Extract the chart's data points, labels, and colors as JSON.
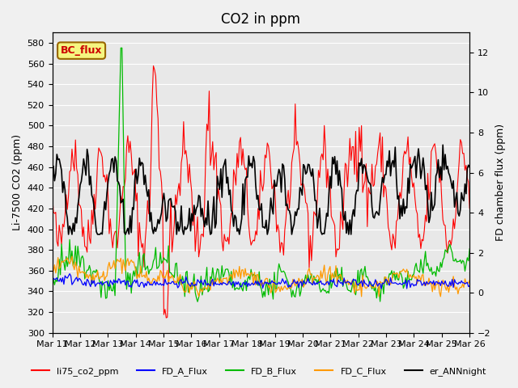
{
  "title": "CO2 in ppm",
  "ylabel_left": "Li-7500 CO2 (ppm)",
  "ylabel_right": "FD chamber flux (ppm)",
  "ylim_left": [
    300,
    590
  ],
  "ylim_right": [
    -2,
    13
  ],
  "yticks_left": [
    300,
    320,
    340,
    360,
    380,
    400,
    420,
    440,
    460,
    480,
    500,
    520,
    540,
    560,
    580
  ],
  "yticks_right": [
    -2,
    0,
    2,
    4,
    6,
    8,
    10,
    12
  ],
  "xtick_labels": [
    "Mar 11",
    "Mar 12",
    "Mar 13",
    "Mar 14",
    "Mar 15",
    "Mar 16",
    "Mar 17",
    "Mar 18",
    "Mar 19",
    "Mar 20",
    "Mar 21",
    "Mar 22",
    "Mar 23",
    "Mar 24",
    "Mar 25",
    "Mar 26"
  ],
  "annotation_text": "BC_flux",
  "annotation_color": "#cc0000",
  "annotation_bg": "#f5f580",
  "colors": {
    "li75_co2_ppm": "#ff0000",
    "FD_A_Flux": "#0000ff",
    "FD_B_Flux": "#00bb00",
    "FD_C_Flux": "#ff9900",
    "er_ANNnight": "#000000"
  },
  "legend_labels": [
    "li75_co2_ppm",
    "FD_A_Flux",
    "FD_B_Flux",
    "FD_C_Flux",
    "er_ANNnight"
  ],
  "background_color": "#e8e8e8",
  "grid_color": "#ffffff",
  "title_fontsize": 12,
  "label_fontsize": 9,
  "tick_fontsize": 8
}
